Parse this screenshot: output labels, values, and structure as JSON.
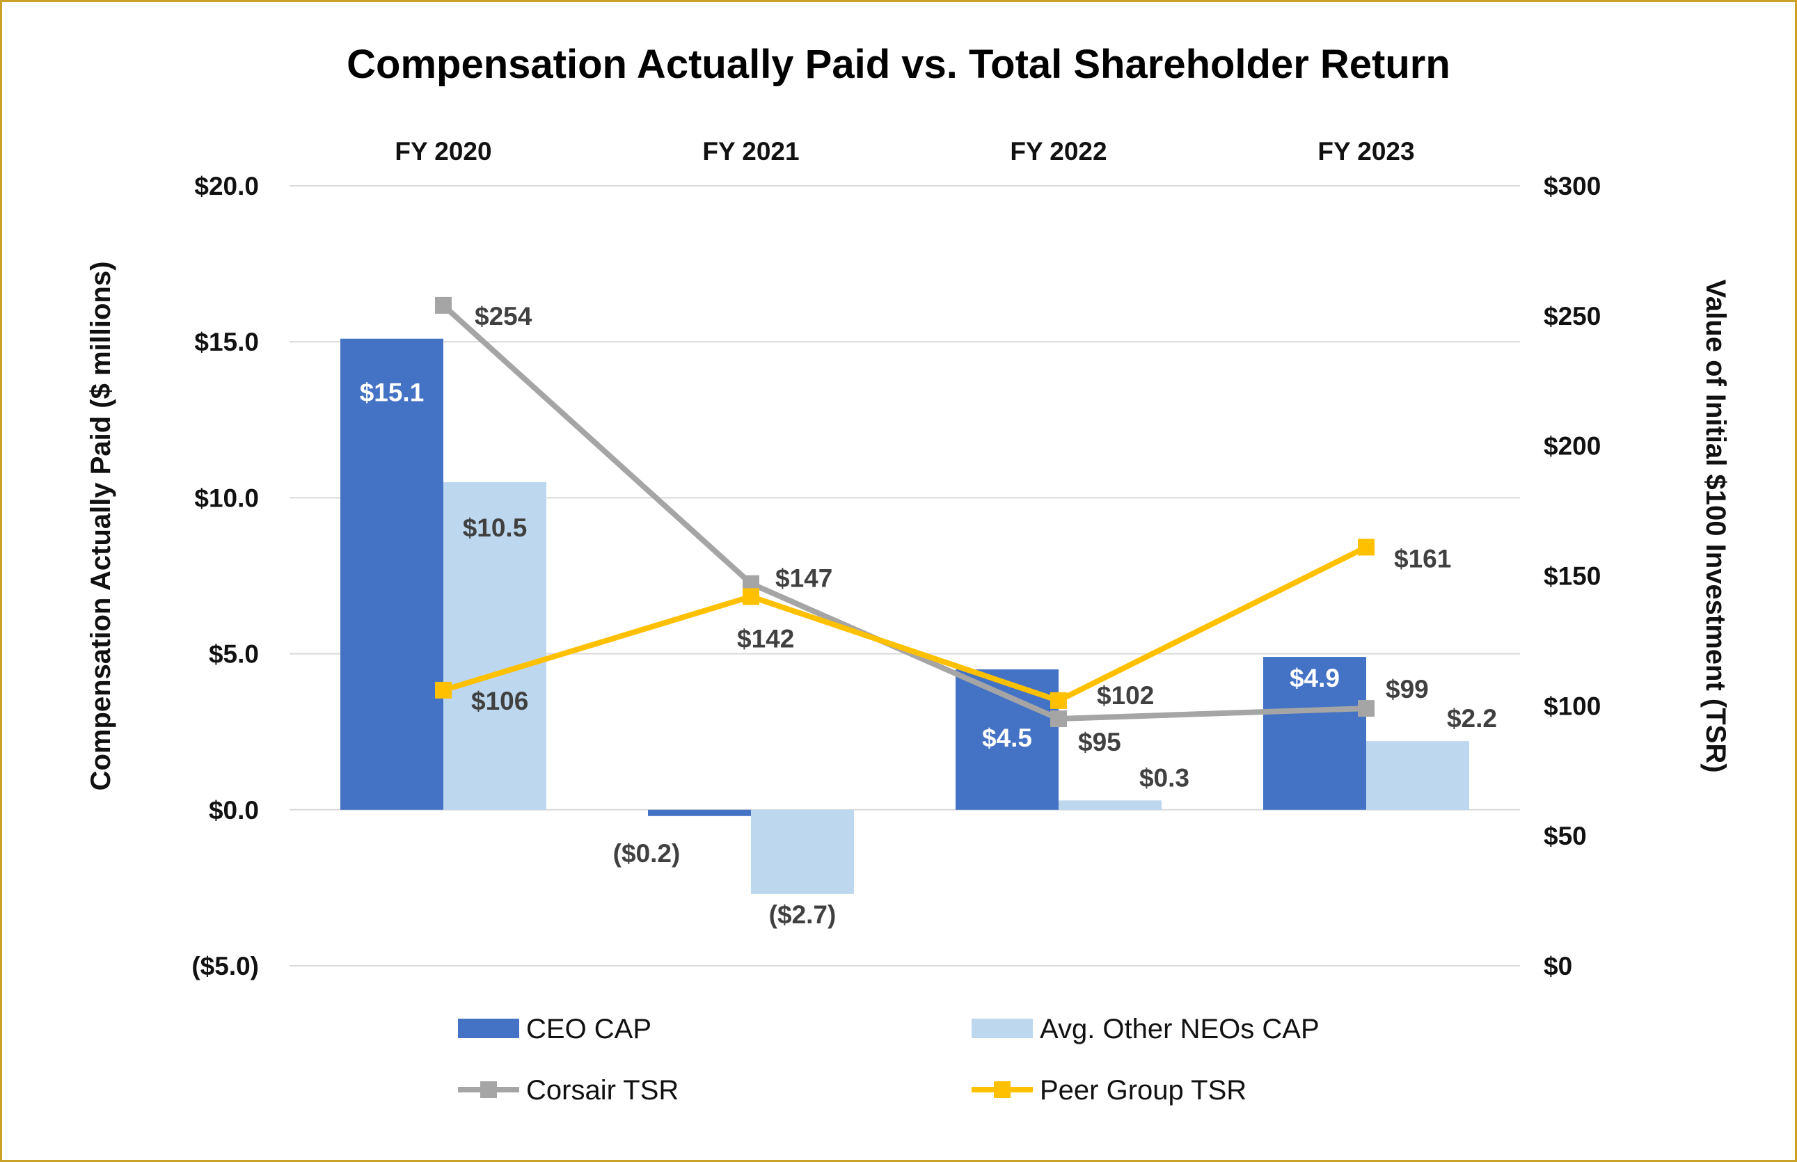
{
  "colors": {
    "ceo_cap": "#4472C4",
    "neo_cap": "#BDD7EE",
    "corsair_tsr": "#A5A5A5",
    "peer_tsr": "#FFC000",
    "grid": "#D9D9D9",
    "border": "#C9A227"
  },
  "chart_data": {
    "type": "bar",
    "title": "Compensation Actually Paid vs. Total Shareholder Return",
    "categories": [
      "FY 2020",
      "FY 2021",
      "FY 2022",
      "FY 2023"
    ],
    "ylabel": "Compensation Actually Paid ($ millions)",
    "y2label": "Value of Initial $100 Investment (TSR)",
    "ylim": [
      -5,
      20
    ],
    "y2lim": [
      0,
      300
    ],
    "yticks": [
      "$20.0",
      "$15.0",
      "$10.0",
      "$5.0",
      "$0.0",
      "($5.0)"
    ],
    "y2ticks": [
      "$300",
      "$250",
      "$200",
      "$150",
      "$100",
      "$50",
      "$0"
    ],
    "grid": true,
    "legend_position": "bottom",
    "series": [
      {
        "name": "CEO CAP",
        "kind": "bar",
        "axis": "left",
        "values": [
          15.1,
          -0.2,
          4.5,
          4.9
        ],
        "labels": [
          "$15.1",
          "($0.2)",
          "$4.5",
          "$4.9"
        ]
      },
      {
        "name": "Avg. Other NEOs CAP",
        "kind": "bar",
        "axis": "left",
        "values": [
          10.5,
          -2.7,
          0.3,
          2.2
        ],
        "labels": [
          "$10.5",
          "($2.7)",
          "$0.3",
          "$2.2"
        ]
      },
      {
        "name": "Corsair TSR",
        "kind": "line",
        "axis": "right",
        "values": [
          254,
          147,
          95,
          99
        ],
        "labels": [
          "$254",
          "$147",
          "$95",
          "$99"
        ]
      },
      {
        "name": "Peer Group TSR",
        "kind": "line",
        "axis": "right",
        "values": [
          106,
          142,
          102,
          161
        ],
        "labels": [
          "$106",
          "$142",
          "$102",
          "$161"
        ]
      }
    ]
  }
}
